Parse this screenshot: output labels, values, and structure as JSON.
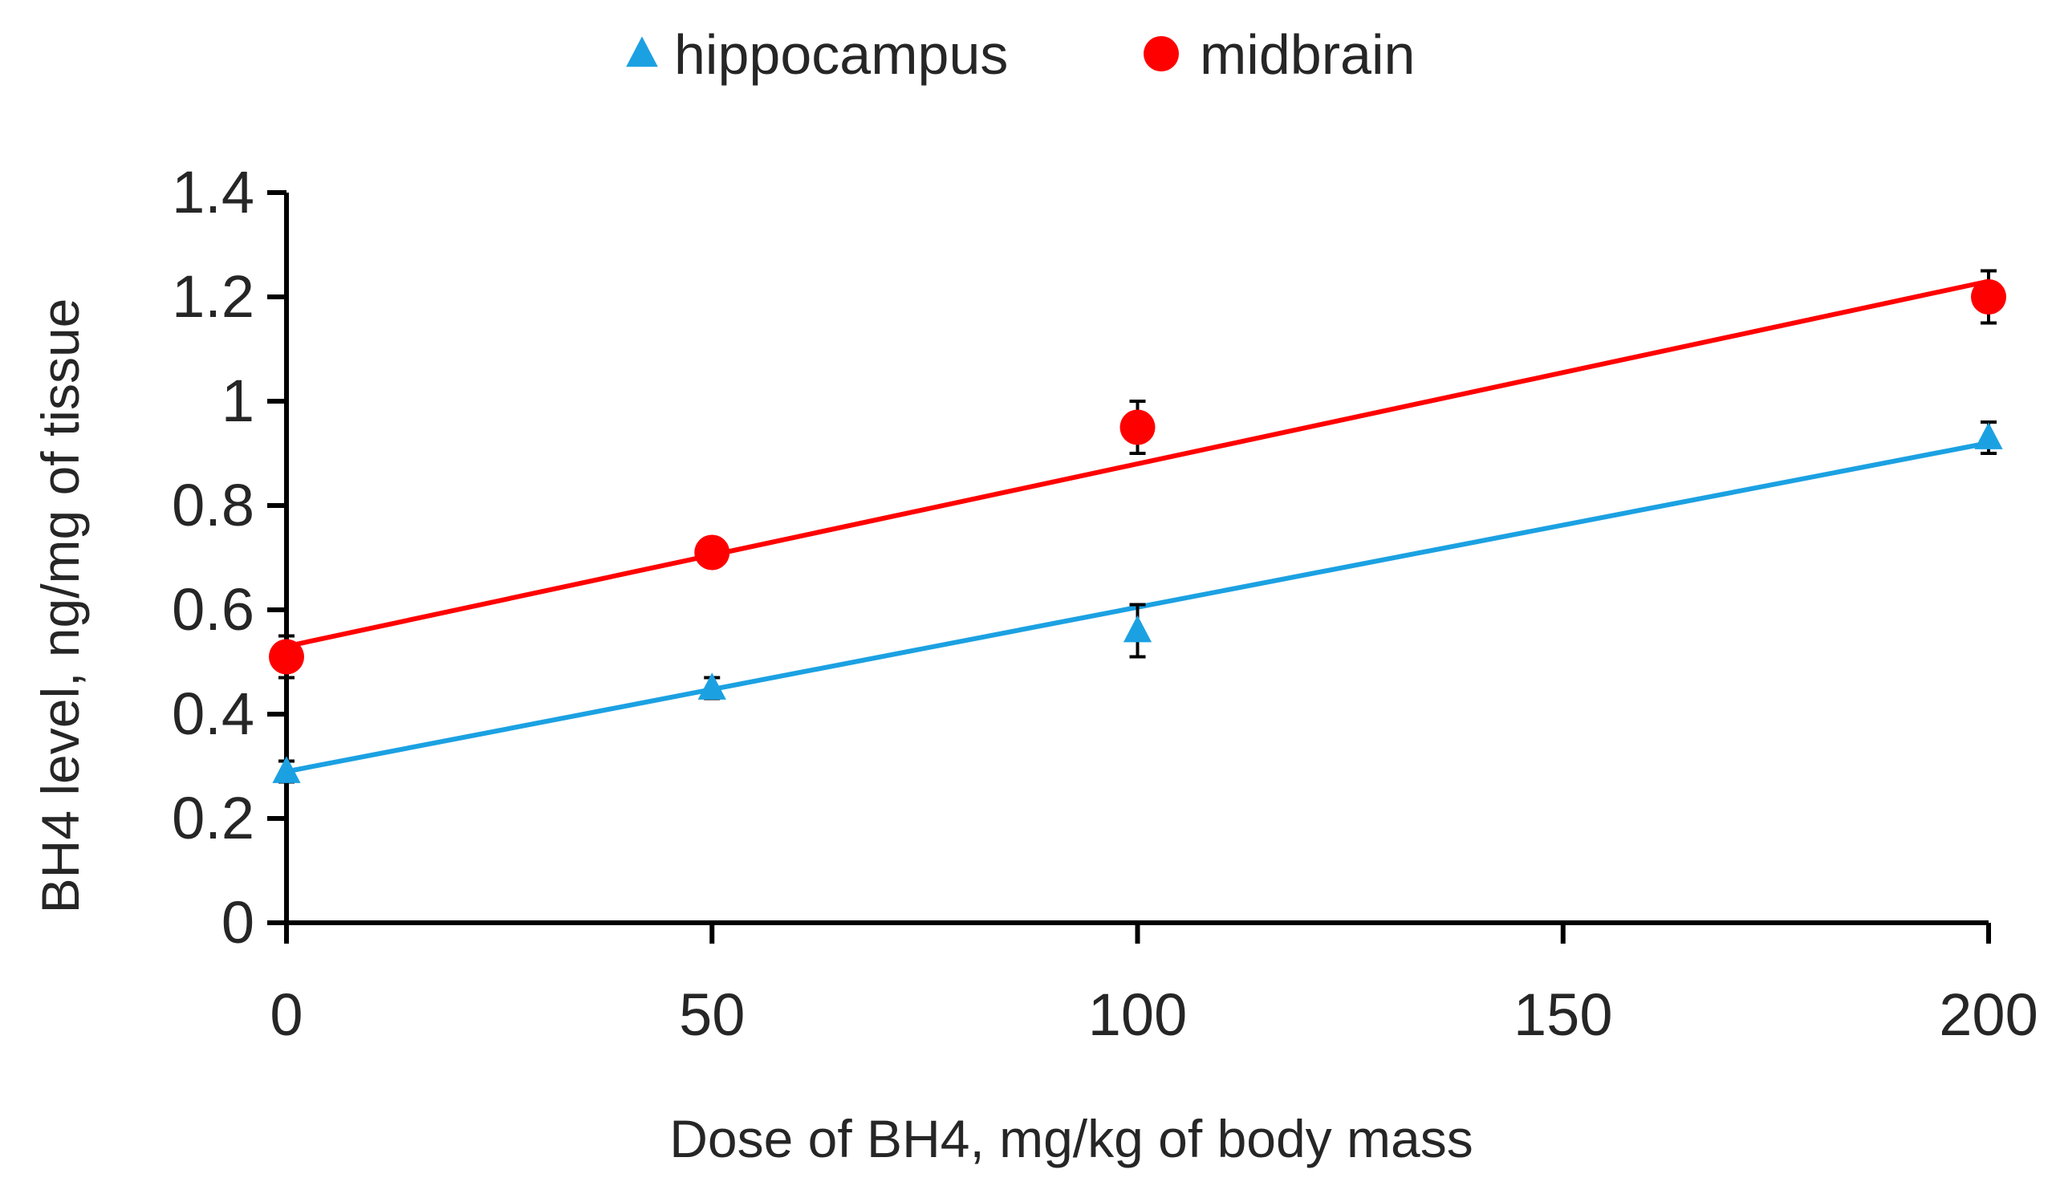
{
  "chart_data": {
    "type": "scatter",
    "title": "",
    "xlabel": "Dose of BH4, mg/kg of body mass",
    "ylabel": "BH4 level, ng/mg of tissue",
    "xlim": [
      0,
      200
    ],
    "ylim": [
      0,
      1.4
    ],
    "xticks": [
      "0",
      "50",
      "100",
      "150",
      "200"
    ],
    "xtick_values": [
      0,
      50,
      100,
      150,
      200
    ],
    "yticks": [
      "0",
      "0.2",
      "0.4",
      "0.6",
      "0.8",
      "1",
      "1.2",
      "1.4"
    ],
    "ytick_values": [
      0,
      0.2,
      0.4,
      0.6,
      0.8,
      1.0,
      1.2,
      1.4
    ],
    "grid": false,
    "legend_position": "top-center",
    "series": [
      {
        "name": "hippocampus",
        "color": "#1ba1e2",
        "marker": "triangle",
        "x": [
          0,
          50,
          100,
          200
        ],
        "y": [
          0.29,
          0.45,
          0.56,
          0.93
        ],
        "error": [
          0.02,
          0.02,
          0.05,
          0.03
        ],
        "trendline": {
          "x": [
            0,
            200
          ],
          "y": [
            0.29,
            0.92
          ]
        }
      },
      {
        "name": "midbrain",
        "color": "#ff0000",
        "marker": "circle",
        "x": [
          0,
          50,
          100,
          200
        ],
        "y": [
          0.51,
          0.71,
          0.95,
          1.2
        ],
        "error": [
          0.04,
          0.02,
          0.05,
          0.05
        ],
        "trendline": {
          "x": [
            0,
            200
          ],
          "y": [
            0.53,
            1.23
          ]
        }
      }
    ]
  }
}
